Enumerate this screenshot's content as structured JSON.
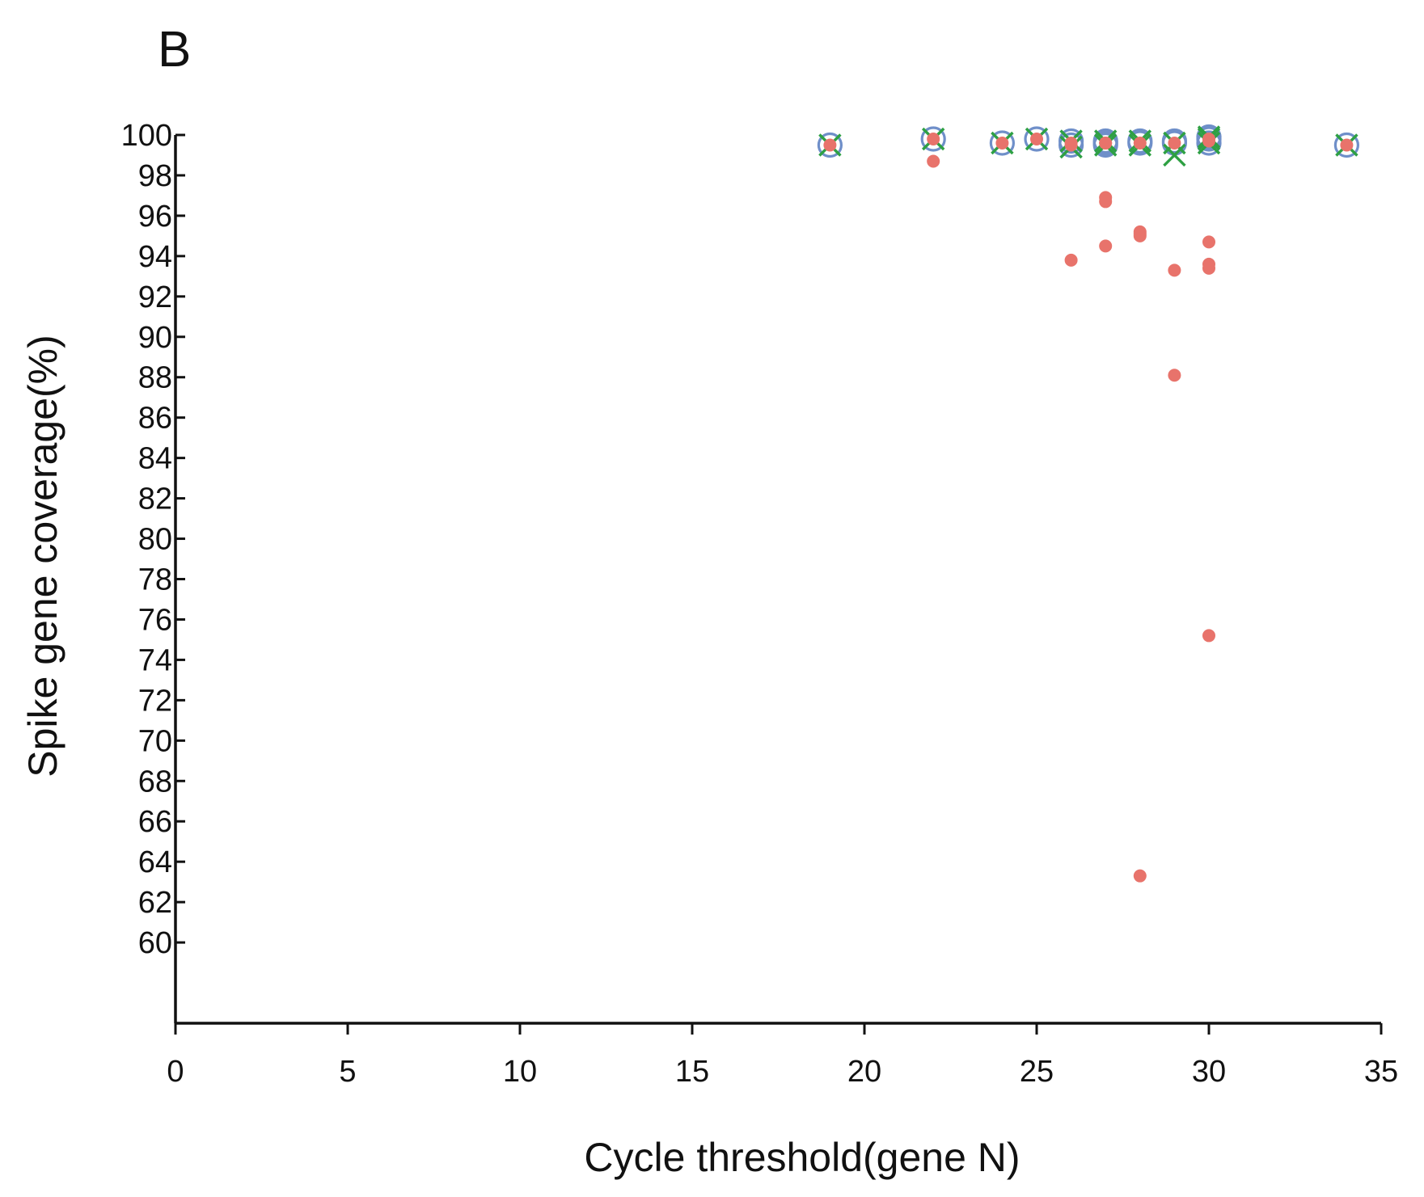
{
  "panel_label": "B",
  "chart_data": {
    "type": "scatter",
    "title": "",
    "xlabel": "Cycle threshold(gene N)",
    "ylabel": "Spike gene coverage(%)",
    "xlim": [
      0,
      35
    ],
    "ylim": [
      56,
      100
    ],
    "xticks": [
      0,
      5,
      10,
      15,
      20,
      25,
      30,
      35
    ],
    "yticks": [
      60,
      62,
      64,
      66,
      68,
      70,
      72,
      74,
      76,
      78,
      80,
      82,
      84,
      86,
      88,
      90,
      92,
      94,
      96,
      98,
      100
    ],
    "legend": null,
    "colors": {
      "filled_dot": "#e8736b",
      "open_circle": "#6f8fc9",
      "cross": "#2ea043"
    },
    "series": [
      {
        "name": "filled-dot",
        "marker": "filled-circle",
        "x": [
          19,
          22,
          22,
          24,
          25,
          26,
          26,
          26,
          27,
          27,
          27,
          27,
          27,
          28,
          28,
          28,
          28,
          28,
          29,
          29,
          29,
          30,
          30,
          30,
          30,
          30,
          30,
          34
        ],
        "y": [
          99.5,
          99.8,
          98.7,
          99.6,
          99.8,
          99.6,
          99.5,
          93.8,
          99.6,
          99.6,
          96.9,
          96.7,
          94.5,
          99.6,
          95.2,
          95.0,
          95.1,
          63.3,
          99.6,
          93.3,
          88.1,
          99.8,
          99.7,
          94.7,
          93.6,
          93.4,
          75.2,
          99.5
        ]
      },
      {
        "name": "open-circle",
        "marker": "open-circle",
        "x": [
          19,
          22,
          24,
          25,
          26,
          26,
          27,
          27,
          27,
          28,
          28,
          29,
          29,
          30,
          30,
          30,
          34
        ],
        "y": [
          99.5,
          99.8,
          99.6,
          99.8,
          99.5,
          99.7,
          99.5,
          99.7,
          99.6,
          99.6,
          99.7,
          99.6,
          99.7,
          99.6,
          99.8,
          99.9,
          99.5
        ]
      },
      {
        "name": "cross",
        "marker": "x",
        "x": [
          19,
          22,
          24,
          25,
          26,
          26,
          27,
          27,
          28,
          28,
          29,
          29,
          30,
          30,
          30,
          34
        ],
        "y": [
          99.5,
          99.8,
          99.6,
          99.8,
          99.4,
          99.7,
          99.5,
          99.7,
          99.5,
          99.7,
          99.6,
          99.0,
          99.6,
          99.8,
          99.9,
          99.5
        ]
      }
    ]
  }
}
